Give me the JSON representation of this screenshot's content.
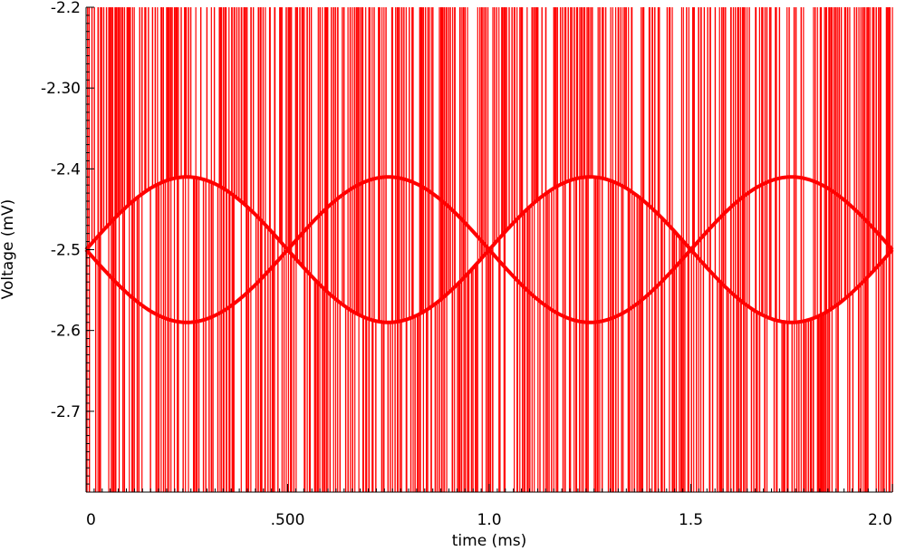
{
  "chart_data": {
    "type": "line",
    "title": "",
    "xlabel": "time (ms)",
    "ylabel": "Voltage (mV)",
    "xlim": [
      0,
      2.0
    ],
    "ylim": [
      -2.8,
      -2.2
    ],
    "grid": false,
    "x_ticks": [
      {
        "value": 0,
        "label": "0"
      },
      {
        "value": 0.5,
        "label": ".500"
      },
      {
        "value": 1.0,
        "label": "1.0"
      },
      {
        "value": 1.5,
        "label": "1.5"
      },
      {
        "value": 2.0,
        "label": "2.0"
      }
    ],
    "y_ticks": [
      {
        "value": -2.2,
        "label": "-2.2"
      },
      {
        "value": -2.3,
        "label": "-2.30"
      },
      {
        "value": -2.4,
        "label": "-2.4"
      },
      {
        "value": -2.5,
        "label": "-2.5"
      },
      {
        "value": -2.6,
        "label": "-2.6"
      },
      {
        "value": -2.7,
        "label": "-2.7"
      }
    ],
    "series": [
      {
        "color": "#ff0000",
        "description_values": {
          "envelope_center": -2.5,
          "envelope_amplitude": 0.09,
          "envelope_period_ms": 1.0,
          "switching_rate_per_ms": 100
        },
        "x": [
          0,
          0.05,
          0.1,
          0.15,
          0.2,
          0.25,
          0.3,
          0.35,
          0.4,
          0.45,
          0.5,
          0.55,
          0.6,
          0.65,
          0.7,
          0.75,
          0.8,
          0.85,
          0.9,
          0.95,
          1.0,
          1.05,
          1.1,
          1.15,
          1.2,
          1.25,
          1.3,
          1.35,
          1.4,
          1.45,
          1.5,
          1.55,
          1.6,
          1.65,
          1.7,
          1.75,
          1.8,
          1.85,
          1.9,
          1.95,
          2.0
        ],
        "y_upper": [
          -2.5,
          -2.472,
          -2.447,
          -2.427,
          -2.414,
          -2.41,
          -2.414,
          -2.427,
          -2.447,
          -2.472,
          -2.5,
          -2.472,
          -2.447,
          -2.427,
          -2.414,
          -2.41,
          -2.414,
          -2.427,
          -2.447,
          -2.472,
          -2.5,
          -2.472,
          -2.447,
          -2.427,
          -2.414,
          -2.41,
          -2.414,
          -2.427,
          -2.447,
          -2.472,
          -2.5,
          -2.472,
          -2.447,
          -2.427,
          -2.414,
          -2.41,
          -2.414,
          -2.427,
          -2.447,
          -2.472,
          -2.5
        ],
        "y_lower": [
          -2.5,
          -2.528,
          -2.553,
          -2.573,
          -2.586,
          -2.59,
          -2.586,
          -2.573,
          -2.553,
          -2.528,
          -2.5,
          -2.528,
          -2.553,
          -2.573,
          -2.586,
          -2.59,
          -2.586,
          -2.573,
          -2.553,
          -2.528,
          -2.5,
          -2.528,
          -2.553,
          -2.573,
          -2.586,
          -2.59,
          -2.586,
          -2.573,
          -2.553,
          -2.528,
          -2.5,
          -2.528,
          -2.553,
          -2.573,
          -2.586,
          -2.59,
          -2.586,
          -2.573,
          -2.553,
          -2.528,
          -2.5
        ]
      }
    ]
  }
}
